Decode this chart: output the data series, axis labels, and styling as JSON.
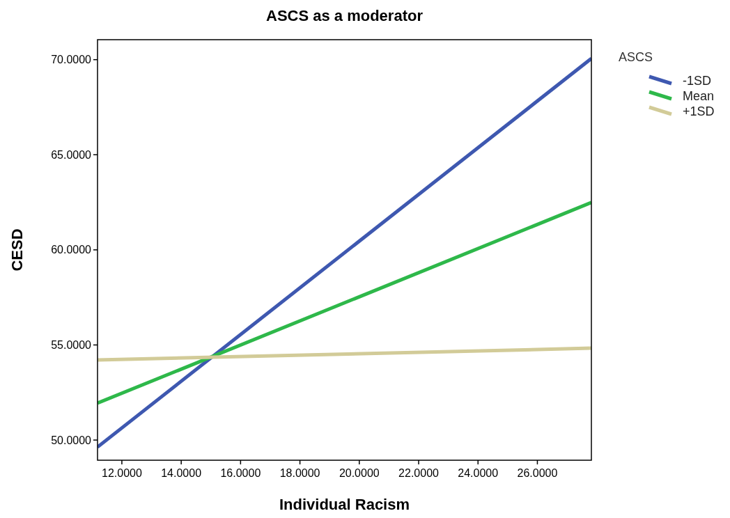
{
  "chart_data": {
    "type": "line",
    "title": "ASCS as a moderator",
    "xlabel": "Individual Racism",
    "ylabel": "CESD",
    "legend_title": "ASCS",
    "legend": "top right",
    "grid": false,
    "marker": "none",
    "line_style": "solid",
    "x": [
      11.18,
      27.82
    ],
    "xlim": [
      11.18,
      27.82
    ],
    "ylim": [
      48.94,
      71.05
    ],
    "xticks": [
      {
        "value": 12,
        "label": "12.0000"
      },
      {
        "value": 14,
        "label": "14.0000"
      },
      {
        "value": 16,
        "label": "16.0000"
      },
      {
        "value": 18,
        "label": "18.0000"
      },
      {
        "value": 20,
        "label": "20.0000"
      },
      {
        "value": 22,
        "label": "22.0000"
      },
      {
        "value": 24,
        "label": "24.0000"
      },
      {
        "value": 26,
        "label": "26.0000"
      }
    ],
    "yticks": [
      {
        "value": 50,
        "label": "50.0000"
      },
      {
        "value": 55,
        "label": "55.0000"
      },
      {
        "value": 60,
        "label": "60.0000"
      },
      {
        "value": 65,
        "label": "65.0000"
      },
      {
        "value": 70,
        "label": "70.0000"
      }
    ],
    "series": [
      {
        "name": "-1SD",
        "color": "#3e58b0",
        "values": [
          49.63,
          70.06
        ]
      },
      {
        "name": "Mean",
        "color": "#2eb84a",
        "values": [
          51.94,
          62.49
        ]
      },
      {
        "name": "+1SD",
        "color": "#d2cb98",
        "values": [
          54.21,
          54.83
        ]
      }
    ]
  }
}
